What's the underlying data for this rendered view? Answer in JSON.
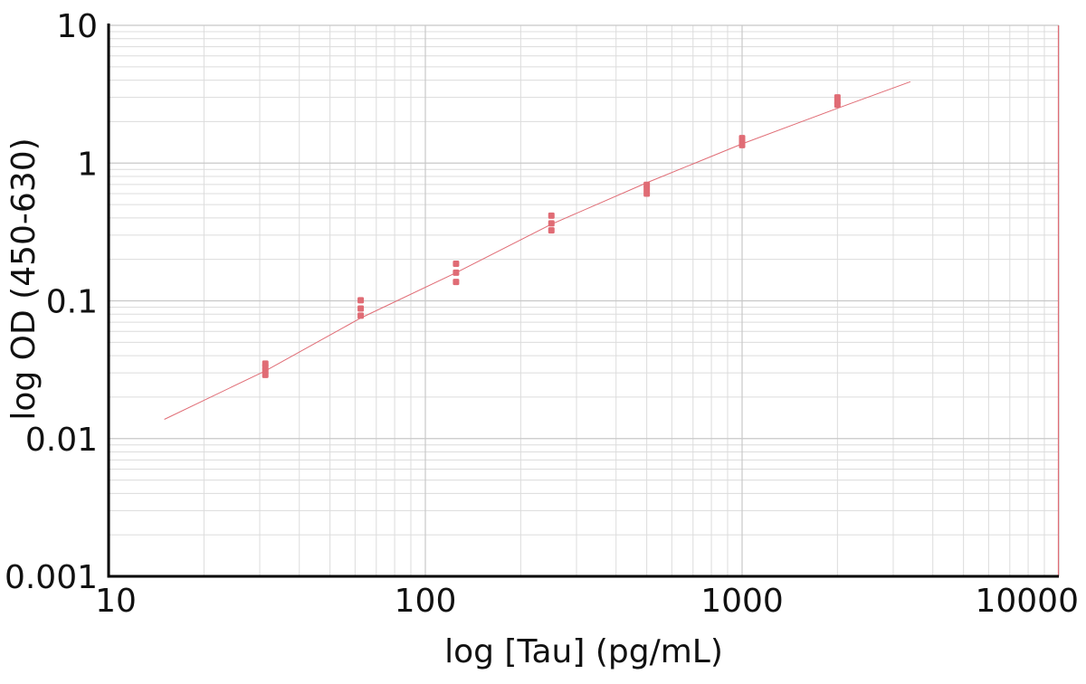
{
  "chart_data": {
    "type": "scatter",
    "x_scale": "log",
    "y_scale": "log",
    "xlabel": "log [Tau] (pg/mL)",
    "ylabel": "log OD (450-630)",
    "xlim": [
      10,
      10000
    ],
    "ylim": [
      0.001,
      10
    ],
    "grid": true,
    "x_ticks": [
      {
        "value": 10,
        "label": "10"
      },
      {
        "value": 100,
        "label": "100"
      },
      {
        "value": 1000,
        "label": "1000"
      },
      {
        "value": 10000,
        "label": "10000"
      }
    ],
    "y_ticks": [
      {
        "value": 0.001,
        "label": "0.001"
      },
      {
        "value": 0.01,
        "label": "0.01"
      },
      {
        "value": 0.1,
        "label": "0.1"
      },
      {
        "value": 1,
        "label": "1"
      },
      {
        "value": 10,
        "label": "10"
      }
    ],
    "series": [
      {
        "color": "#e06c75",
        "points": [
          {
            "x": 31.25,
            "y": 0.029
          },
          {
            "x": 31.25,
            "y": 0.031
          },
          {
            "x": 31.25,
            "y": 0.033
          },
          {
            "x": 31.25,
            "y": 0.035
          },
          {
            "x": 62.5,
            "y": 0.078
          },
          {
            "x": 62.5,
            "y": 0.088
          },
          {
            "x": 62.5,
            "y": 0.101
          },
          {
            "x": 125,
            "y": 0.137
          },
          {
            "x": 125,
            "y": 0.16
          },
          {
            "x": 125,
            "y": 0.186
          },
          {
            "x": 250,
            "y": 0.325
          },
          {
            "x": 250,
            "y": 0.365
          },
          {
            "x": 250,
            "y": 0.415
          },
          {
            "x": 500,
            "y": 0.6
          },
          {
            "x": 500,
            "y": 0.65
          },
          {
            "x": 500,
            "y": 0.695
          },
          {
            "x": 1000,
            "y": 1.35
          },
          {
            "x": 1000,
            "y": 1.42
          },
          {
            "x": 1000,
            "y": 1.52
          },
          {
            "x": 2000,
            "y": 2.65
          },
          {
            "x": 2000,
            "y": 2.8
          },
          {
            "x": 2000,
            "y": 3.0
          }
        ]
      }
    ],
    "fit_curve": {
      "color": "#e06c75",
      "points": [
        {
          "x": 15,
          "y": 0.0138
        },
        {
          "x": 31.25,
          "y": 0.031
        },
        {
          "x": 62.5,
          "y": 0.075
        },
        {
          "x": 125,
          "y": 0.16
        },
        {
          "x": 250,
          "y": 0.36
        },
        {
          "x": 500,
          "y": 0.72
        },
        {
          "x": 1000,
          "y": 1.38
        },
        {
          "x": 2000,
          "y": 2.5
        },
        {
          "x": 3400,
          "y": 3.9
        }
      ]
    },
    "reference_line": {
      "x": 10000,
      "color": "#e06c75"
    }
  }
}
